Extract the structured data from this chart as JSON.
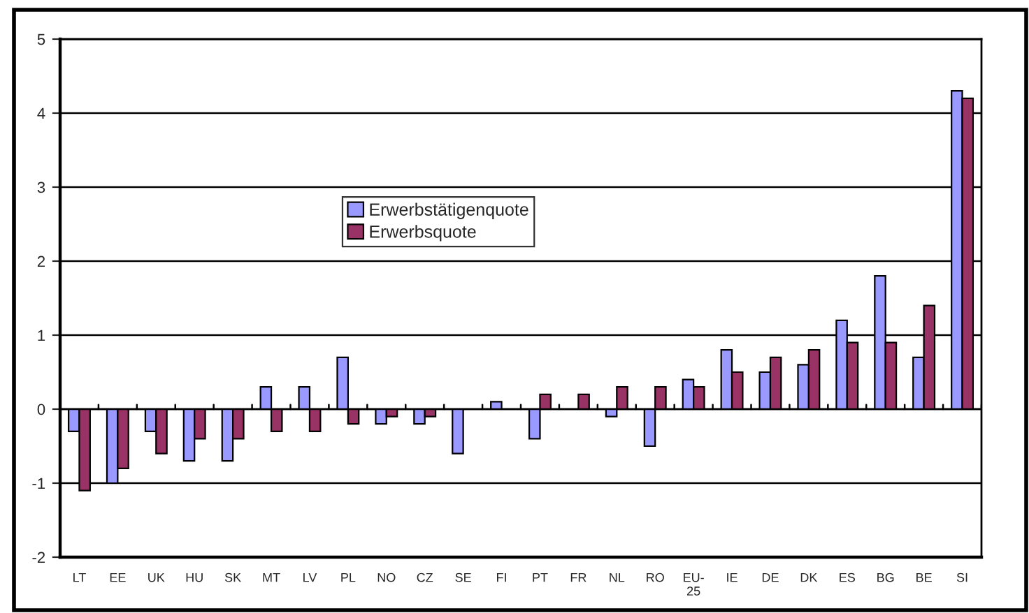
{
  "chart_data": {
    "type": "bar",
    "categories": [
      "LT",
      "EE",
      "UK",
      "HU",
      "SK",
      "MT",
      "LV",
      "PL",
      "NO",
      "CZ",
      "SE",
      "FI",
      "PT",
      "FR",
      "NL",
      "RO",
      "EU-\n25",
      "IE",
      "DE",
      "DK",
      "ES",
      "BG",
      "BE",
      "SI"
    ],
    "series": [
      {
        "name": "Erwerbstätigenquote",
        "color": "#9999ff",
        "values": [
          -0.3,
          -1.0,
          -0.3,
          -0.7,
          -0.7,
          0.3,
          0.3,
          0.7,
          -0.2,
          -0.2,
          -0.6,
          0.1,
          -0.4,
          null,
          -0.1,
          -0.5,
          0.4,
          0.8,
          0.5,
          0.6,
          1.2,
          1.8,
          0.7,
          4.3
        ]
      },
      {
        "name": "Erwerbsquote",
        "color": "#993366",
        "values": [
          -1.1,
          -0.8,
          -0.6,
          -0.4,
          -0.4,
          -0.3,
          -0.3,
          -0.2,
          -0.1,
          -0.1,
          null,
          null,
          0.2,
          0.2,
          0.3,
          0.3,
          0.3,
          0.5,
          0.7,
          0.8,
          0.9,
          0.9,
          1.4,
          4.2
        ]
      }
    ],
    "ylim": [
      -2,
      5
    ],
    "yticks": [
      -2,
      -1,
      0,
      1,
      2,
      3,
      4,
      5
    ],
    "grid": "y",
    "legend": "center"
  }
}
